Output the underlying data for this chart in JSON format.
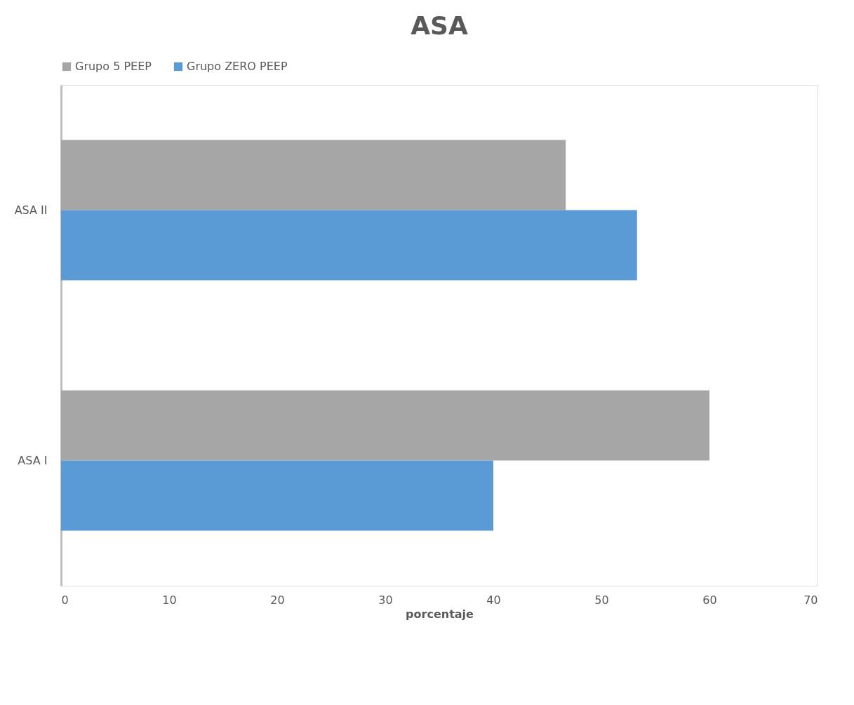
{
  "chart_data": {
    "type": "bar",
    "orientation": "horizontal",
    "title": "ASA",
    "xlabel": "porcentaje",
    "categories": [
      "ASA II",
      "ASA I"
    ],
    "series": [
      {
        "name": "Grupo 5 PEEP",
        "color": "#a6a6a6",
        "values": [
          46.7,
          60
        ]
      },
      {
        "name": "Grupo ZERO PEEP",
        "color": "#5b9bd5",
        "values": [
          53.3,
          40
        ]
      }
    ],
    "xlim": [
      0,
      70
    ],
    "xticks": [
      0,
      10,
      20,
      30,
      40,
      50,
      60,
      70
    ],
    "grid": false,
    "legend": "top"
  }
}
